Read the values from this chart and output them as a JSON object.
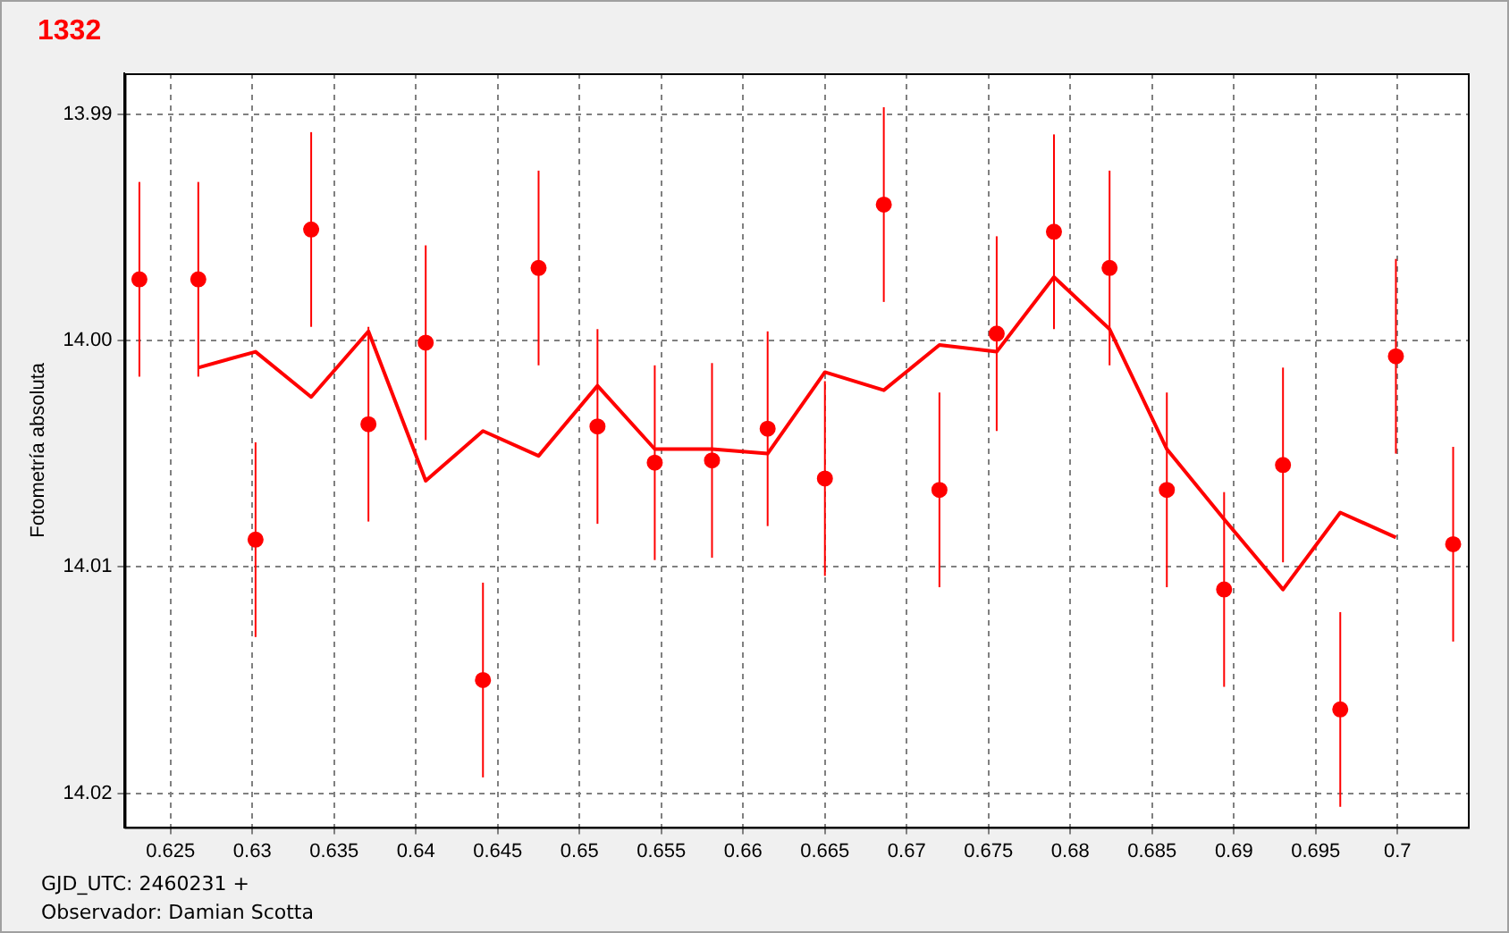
{
  "chart_data": {
    "type": "scatter",
    "title": "1332",
    "xlabel": "GJD_UTC: 2460231 +",
    "ylabel": "Fotometría absoluta",
    "annotations": [
      "Observador: Damian Scotta"
    ],
    "xlim": [
      0.6222,
      0.7043
    ],
    "ylim": [
      14.0215,
      13.9882
    ],
    "xticks": [
      0.625,
      0.63,
      0.635,
      0.64,
      0.645,
      0.65,
      0.655,
      0.66,
      0.665,
      0.67,
      0.675,
      0.68,
      0.685,
      0.69,
      0.695,
      0.7
    ],
    "yticks": [
      13.99,
      {
        "value": 14,
        "label": "14.00"
      },
      14.01,
      14.02
    ],
    "grid": true,
    "line_style": "solid",
    "series": [
      {
        "marker": "circle",
        "color": "#ff0000",
        "x": [
          0.6231,
          0.6267,
          0.6302,
          0.6336,
          0.6371,
          0.6406,
          0.6441,
          0.6475,
          0.6511,
          0.6546,
          0.6581,
          0.6615,
          0.665,
          0.6686,
          0.672,
          0.6755,
          0.679,
          0.6824,
          0.6859,
          0.6894,
          0.693,
          0.6965,
          0.6999,
          0.7034
        ],
        "values": [
          13.9973,
          13.9973,
          14.0088,
          13.9951,
          14.0037,
          14.0001,
          14.015,
          13.9968,
          14.0038,
          14.0054,
          14.0053,
          14.0039,
          14.0061,
          13.994,
          14.0066,
          13.9997,
          13.9952,
          13.9968,
          14.0066,
          14.011,
          14.0055,
          14.0163,
          14.0007,
          14.009
        ],
        "errors": [
          0.0043,
          0.0043,
          0.0043,
          0.0043,
          0.0043,
          0.0043,
          0.0043,
          0.0043,
          0.0043,
          0.0043,
          0.0043,
          0.0043,
          0.0043,
          0.0043,
          0.0043,
          0.0043,
          0.0043,
          0.0043,
          0.0043,
          0.0043,
          0.0043,
          0.0043,
          0.0043,
          0.0043
        ]
      },
      {
        "type": "line",
        "marker": "none",
        "color": "#ff0000",
        "x": [
          0.6267,
          0.6302,
          0.6336,
          0.6371,
          0.6406,
          0.6441,
          0.6475,
          0.6511,
          0.6546,
          0.6581,
          0.6615,
          0.665,
          0.6686,
          0.672,
          0.6755,
          0.679,
          0.6824,
          0.6859,
          0.6894,
          0.693,
          0.6965,
          0.6999
        ],
        "values": [
          14.0012,
          14.0005,
          14.0025,
          13.9996,
          14.0062,
          14.004,
          14.0051,
          14.002,
          14.0048,
          14.0048,
          14.005,
          14.0014,
          14.0022,
          14.0002,
          14.0005,
          13.9972,
          13.9995,
          14.0048,
          14.0079,
          14.011,
          14.0076,
          14.0087
        ]
      }
    ]
  }
}
